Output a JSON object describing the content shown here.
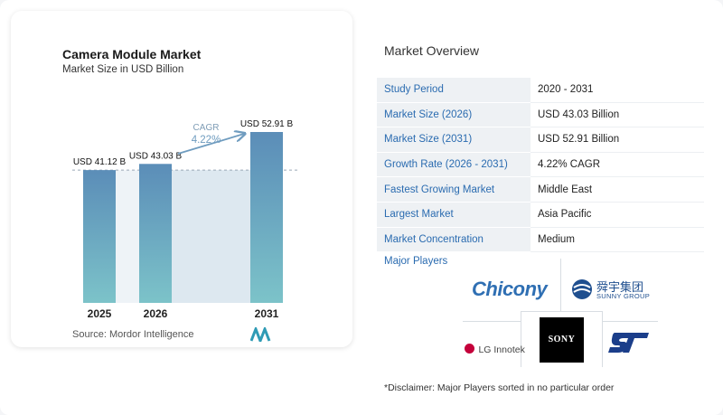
{
  "chart_data": {
    "type": "bar",
    "title": "Camera Module Market",
    "subtitle": "Market Size in USD Billion",
    "categories": [
      "2025",
      "2026",
      "2031"
    ],
    "values": [
      41.12,
      43.03,
      52.91
    ],
    "value_labels": [
      "USD 41.12 B",
      "USD 43.03 B",
      "USD 52.91 B"
    ],
    "ylim": [
      0,
      52.91
    ],
    "annotation": {
      "label": "CAGR",
      "value": "4.22%"
    },
    "colors": {
      "bar_top": "#5b8db8",
      "bar_bottom": "#7cc3c9",
      "shade": "#dde8f0",
      "arrow": "#6f9cbf"
    }
  },
  "source": "Source:  Mordor Intelligence",
  "overview": {
    "title": "Market Overview",
    "rows": [
      {
        "key": "Study Period",
        "value": "2020 - 2031"
      },
      {
        "key": "Market Size (2026)",
        "value": "USD 43.03 Billion"
      },
      {
        "key": "Market Size (2031)",
        "value": "USD 52.91 Billion"
      },
      {
        "key": "Growth Rate (2026 - 2031)",
        "value": "4.22% CAGR"
      },
      {
        "key": "Fastest Growing Market",
        "value": "Middle East"
      },
      {
        "key": "Largest Market",
        "value": "Asia Pacific"
      },
      {
        "key": "Market Concentration",
        "value": "Medium"
      }
    ]
  },
  "players": {
    "title": "Major Players",
    "chicony": "Chicony",
    "sunny_cn": "舜宇集团",
    "sunny_en": "SUNNY GROUP",
    "lg": "LG Innotek",
    "sony": "SONY",
    "st": "ST"
  },
  "disclaimer": "*Disclaimer: Major Players sorted in no particular order"
}
